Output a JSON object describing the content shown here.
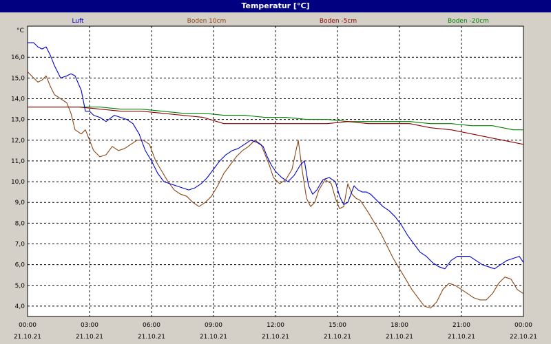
{
  "window": {
    "title": "Temperatur [°C]"
  },
  "colors": {
    "luft": "#0000cc",
    "boden_10cm": "#8b4513",
    "boden_minus5cm": "#8b0000",
    "boden_minus20cm": "#008000",
    "grid": "#000000",
    "plot_bg": "#ffffff"
  },
  "chart_data": {
    "type": "line",
    "title": "Temperatur [°C]",
    "ylabel": "°C",
    "xlabel": "",
    "grid": true,
    "legend_position": "top",
    "ylim": [
      3.5,
      17.5
    ],
    "xlim": [
      0,
      24
    ],
    "y_ticks": [
      "4,0",
      "5,0",
      "6,0",
      "7,0",
      "8,0",
      "9,0",
      "10,0",
      "11,0",
      "12,0",
      "13,0",
      "14,0",
      "15,0",
      "16,0"
    ],
    "x_tick_times": [
      "00:00",
      "03:00",
      "06:00",
      "09:00",
      "12:00",
      "15:00",
      "18:00",
      "21:00",
      "00:00"
    ],
    "x_tick_dates": [
      "21.10.21",
      "21.10.21",
      "21.10.21",
      "21.10.21",
      "21.10.21",
      "21.10.21",
      "21.10.21",
      "21.10.21",
      "22.10.21"
    ],
    "series": [
      {
        "name": "Luft",
        "color": "#0000cc",
        "x": [
          0,
          0.3,
          0.5,
          0.7,
          0.9,
          1.1,
          1.3,
          1.6,
          1.9,
          2.1,
          2.3,
          2.6,
          2.8,
          3.0,
          3.2,
          3.5,
          3.8,
          4.2,
          4.5,
          4.8,
          5.1,
          5.4,
          5.7,
          6.0,
          6.3,
          6.6,
          6.9,
          7.2,
          7.5,
          7.8,
          8.1,
          8.4,
          8.7,
          9.0,
          9.3,
          9.6,
          9.9,
          10.2,
          10.5,
          10.8,
          11.1,
          11.4,
          11.6,
          11.8,
          12.0,
          12.3,
          12.6,
          12.9,
          13.2,
          13.4,
          13.6,
          13.8,
          14.0,
          14.3,
          14.6,
          14.9,
          15.1,
          15.3,
          15.5,
          15.8,
          16.0,
          16.2,
          16.4,
          16.6,
          16.9,
          17.2,
          17.5,
          17.8,
          18.1,
          18.4,
          18.7,
          19.0,
          19.3,
          19.6,
          19.9,
          20.2,
          20.5,
          20.8,
          21.1,
          21.4,
          21.7,
          22.0,
          22.3,
          22.6,
          22.9,
          23.2,
          23.5,
          23.8,
          24.0
        ],
        "values": [
          16.7,
          16.7,
          16.5,
          16.4,
          16.5,
          16.1,
          15.6,
          15.0,
          15.1,
          15.2,
          15.1,
          14.4,
          13.4,
          13.4,
          13.2,
          13.1,
          12.9,
          13.2,
          13.1,
          13.0,
          12.8,
          12.3,
          11.5,
          11.0,
          10.4,
          10.0,
          9.9,
          9.8,
          9.7,
          9.6,
          9.7,
          9.9,
          10.2,
          10.6,
          11.0,
          11.3,
          11.5,
          11.6,
          11.8,
          12.0,
          11.9,
          11.7,
          11.2,
          10.8,
          10.5,
          10.2,
          10.0,
          10.3,
          10.8,
          11.0,
          9.8,
          9.4,
          9.6,
          10.1,
          10.2,
          10.0,
          9.3,
          8.9,
          9.0,
          9.8,
          9.6,
          9.5,
          9.5,
          9.4,
          9.1,
          8.8,
          8.6,
          8.3,
          7.9,
          7.4,
          7.0,
          6.6,
          6.4,
          6.1,
          5.9,
          5.8,
          6.2,
          6.4,
          6.4,
          6.4,
          6.2,
          6.0,
          5.9,
          5.8,
          6.0,
          6.2,
          6.3,
          6.4,
          6.1
        ]
      },
      {
        "name": "Boden 10cm",
        "color": "#8b4513",
        "x": [
          0,
          0.3,
          0.5,
          0.7,
          0.9,
          1.1,
          1.3,
          1.6,
          1.9,
          2.1,
          2.3,
          2.6,
          2.8,
          3.0,
          3.2,
          3.5,
          3.8,
          4.1,
          4.4,
          4.7,
          5.0,
          5.3,
          5.6,
          5.9,
          6.2,
          6.5,
          6.8,
          7.1,
          7.4,
          7.7,
          8.0,
          8.3,
          8.6,
          8.9,
          9.2,
          9.5,
          9.8,
          10.1,
          10.4,
          10.7,
          11.0,
          11.3,
          11.5,
          11.7,
          11.9,
          12.2,
          12.5,
          12.8,
          13.1,
          13.3,
          13.5,
          13.7,
          13.9,
          14.1,
          14.4,
          14.7,
          14.9,
          15.1,
          15.3,
          15.5,
          15.7,
          15.9,
          16.1,
          16.3,
          16.5,
          16.8,
          17.1,
          17.4,
          17.7,
          18.0,
          18.3,
          18.6,
          18.9,
          19.2,
          19.5,
          19.8,
          20.1,
          20.4,
          20.7,
          21.0,
          21.3,
          21.6,
          21.9,
          22.2,
          22.5,
          22.8,
          23.1,
          23.4,
          23.7,
          24.0
        ],
        "values": [
          15.3,
          15.0,
          14.8,
          14.9,
          15.1,
          14.6,
          14.2,
          14.0,
          13.8,
          13.3,
          12.5,
          12.3,
          12.5,
          12.0,
          11.5,
          11.2,
          11.3,
          11.7,
          11.5,
          11.6,
          11.8,
          12.0,
          12.0,
          11.8,
          11.0,
          10.5,
          10.0,
          9.6,
          9.4,
          9.3,
          9.0,
          8.8,
          9.0,
          9.3,
          9.8,
          10.4,
          10.8,
          11.2,
          11.5,
          11.7,
          12.0,
          11.8,
          11.3,
          10.8,
          10.2,
          9.9,
          10.1,
          10.6,
          12.0,
          10.5,
          9.2,
          8.8,
          9.0,
          9.6,
          10.1,
          9.9,
          9.2,
          8.7,
          8.8,
          9.9,
          9.4,
          9.2,
          9.1,
          8.8,
          8.5,
          8.0,
          7.5,
          6.9,
          6.3,
          5.8,
          5.3,
          4.8,
          4.4,
          4.0,
          3.9,
          4.2,
          4.8,
          5.1,
          5.0,
          4.8,
          4.6,
          4.4,
          4.3,
          4.3,
          4.6,
          5.1,
          5.4,
          5.3,
          4.8,
          4.6
        ]
      },
      {
        "name": "Boden -5cm",
        "color": "#8b0000",
        "x": [
          0,
          2.5,
          3.5,
          4.5,
          5.5,
          6.5,
          7.5,
          8.5,
          9.5,
          10.5,
          11.5,
          12.5,
          13.5,
          14.5,
          15.5,
          16.5,
          17.5,
          18.5,
          19.5,
          20.5,
          21.5,
          22.5,
          23.5,
          24.0
        ],
        "values": [
          13.6,
          13.6,
          13.5,
          13.4,
          13.4,
          13.3,
          13.2,
          13.1,
          12.8,
          12.8,
          12.8,
          12.8,
          12.8,
          12.8,
          12.9,
          12.8,
          12.8,
          12.8,
          12.6,
          12.5,
          12.3,
          12.1,
          11.9,
          11.8
        ]
      },
      {
        "name": "Boden -20cm",
        "color": "#008000",
        "x": [
          0,
          2.5,
          3.5,
          4.5,
          5.5,
          6.5,
          7.5,
          8.5,
          9.5,
          10.5,
          11.5,
          12.5,
          13.5,
          14.5,
          15.5,
          16.5,
          17.5,
          18.5,
          19.5,
          20.5,
          21.5,
          22.5,
          23.5,
          24.0
        ],
        "values": [
          13.6,
          13.6,
          13.6,
          13.5,
          13.5,
          13.4,
          13.3,
          13.3,
          13.2,
          13.2,
          13.1,
          13.1,
          13.0,
          13.0,
          12.9,
          12.9,
          12.9,
          12.9,
          12.8,
          12.8,
          12.7,
          12.7,
          12.5,
          12.5
        ]
      }
    ]
  }
}
